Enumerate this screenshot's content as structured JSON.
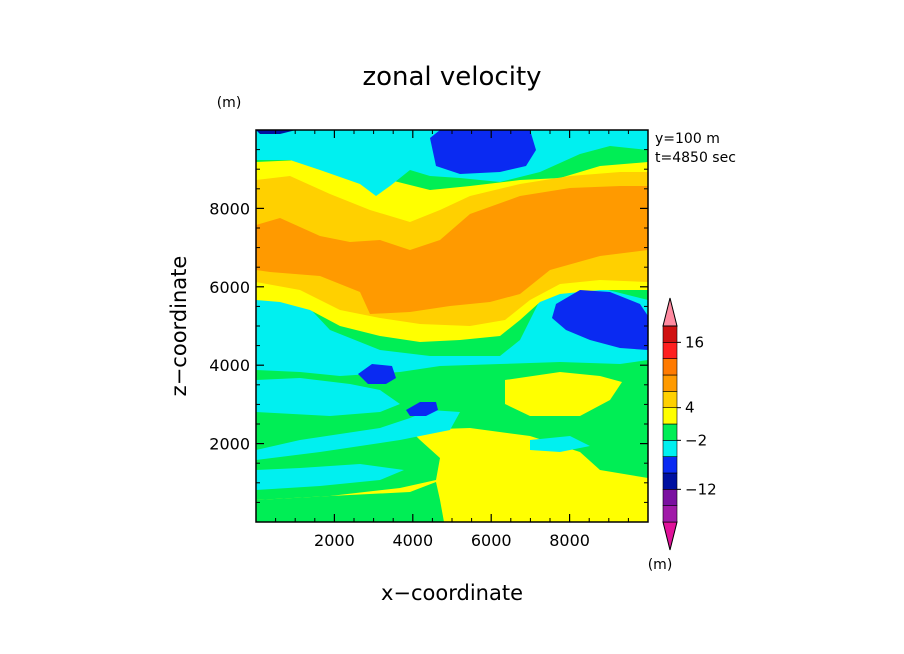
{
  "chart_data": {
    "type": "heatmap",
    "title": "zonal velocity",
    "xlabel": "x−coordinate",
    "ylabel": "z−coordinate",
    "x_unit": "(m)",
    "y_unit": "(m)",
    "xlim": [
      0,
      10000
    ],
    "ylim": [
      0,
      10000
    ],
    "x_ticks": [
      "2000",
      "4000",
      "6000",
      "8000"
    ],
    "y_ticks": [
      "2000",
      "4000",
      "6000",
      "8000"
    ],
    "info": [
      "y=100 m",
      "t=4850 sec"
    ],
    "colorbar": {
      "unit": "(m)",
      "tick_labels": [
        "16",
        "4",
        "−2",
        "−12"
      ],
      "levels": [
        {
          "color": "#e0129a"
        },
        {
          "color": "#a01aa8"
        },
        {
          "color": "#7a10a0"
        },
        {
          "color": "#0010a0"
        },
        {
          "color": "#0a2af2"
        },
        {
          "color": "#00f0f0"
        },
        {
          "color": "#00ee55"
        },
        {
          "color": "#ffff00"
        },
        {
          "color": "#ffd000"
        },
        {
          "color": "#ff9a00"
        },
        {
          "color": "#ff7a00"
        },
        {
          "color": "#ff2020"
        },
        {
          "color": "#d01010"
        },
        {
          "color": "#ff8aa0"
        }
      ]
    },
    "colors": {
      "yellow": "#ffff00",
      "gold": "#ffd000",
      "orange": "#ff9a00",
      "green": "#00ee55",
      "cyan": "#00f0f0",
      "blue": "#0a2af2",
      "navy": "#0010a0"
    }
  }
}
